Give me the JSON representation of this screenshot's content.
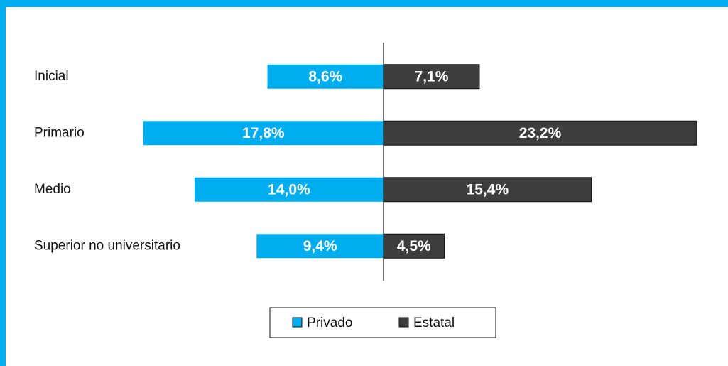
{
  "chart_data": {
    "type": "bar",
    "orientation": "diverging-horizontal",
    "categories": [
      "Inicial",
      "Primario",
      "Medio",
      "Superior no universitario"
    ],
    "series": [
      {
        "name": "Privado",
        "color": "#00aeef",
        "values": [
          8.6,
          17.8,
          14.0,
          9.4
        ],
        "value_labels": [
          "8,6%",
          "17,8%",
          "14,0%",
          "9,4%"
        ]
      },
      {
        "name": "Estatal",
        "color": "#3d3d3d",
        "values": [
          7.1,
          23.2,
          15.4,
          4.5
        ],
        "value_labels": [
          "7,1%",
          "23,2%",
          "15,4%",
          "4,5%"
        ]
      }
    ],
    "legend": "bottom"
  }
}
